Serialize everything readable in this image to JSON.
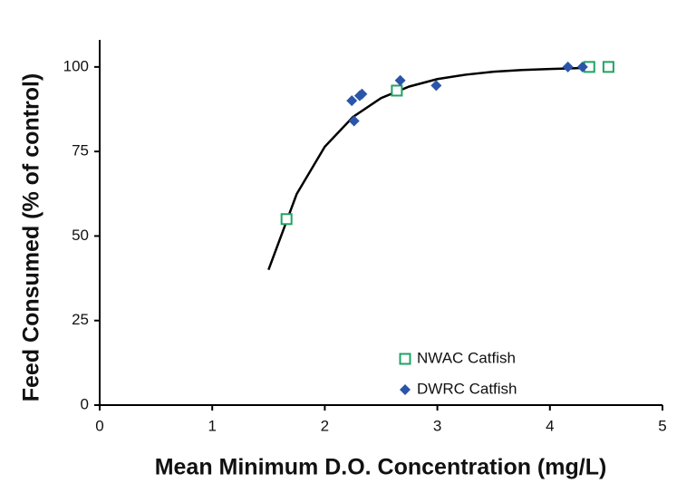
{
  "chart_data": {
    "type": "scatter",
    "xlabel": "Mean Minimum D.O. Concentration (mg/L)",
    "ylabel": "Feed Consumed (% of control)",
    "xlim": [
      0,
      5
    ],
    "xticks": [
      0,
      1,
      2,
      3,
      4,
      5
    ],
    "ylim": [
      0,
      108
    ],
    "yticks": [
      0,
      25,
      50,
      75,
      100
    ],
    "legend": "lower right",
    "series": [
      {
        "name": "NWAC Catfish",
        "color": "#1fa363",
        "marker": "open-square",
        "x": [
          1.66,
          2.64,
          4.35,
          4.52
        ],
        "values": [
          55,
          93,
          100,
          100
        ]
      },
      {
        "name": "DWRC Catfish",
        "color": "#2b55a8",
        "marker": "diamond",
        "x": [
          2.24,
          2.26,
          2.31,
          2.33,
          2.67,
          2.99,
          4.16,
          4.29
        ],
        "values": [
          90,
          84,
          91.5,
          92,
          96,
          94.5,
          100,
          100
        ]
      }
    ],
    "fit": {
      "color": "#000000",
      "x": [
        1.5,
        1.75,
        2,
        2.25,
        2.5,
        2.75,
        3,
        3.25,
        3.5,
        3.75,
        4,
        4.3
      ],
      "values": [
        40,
        62.4,
        76.4,
        85.2,
        90.8,
        94.2,
        96.4,
        97.7,
        98.6,
        99.1,
        99.4,
        99.7
      ]
    }
  }
}
